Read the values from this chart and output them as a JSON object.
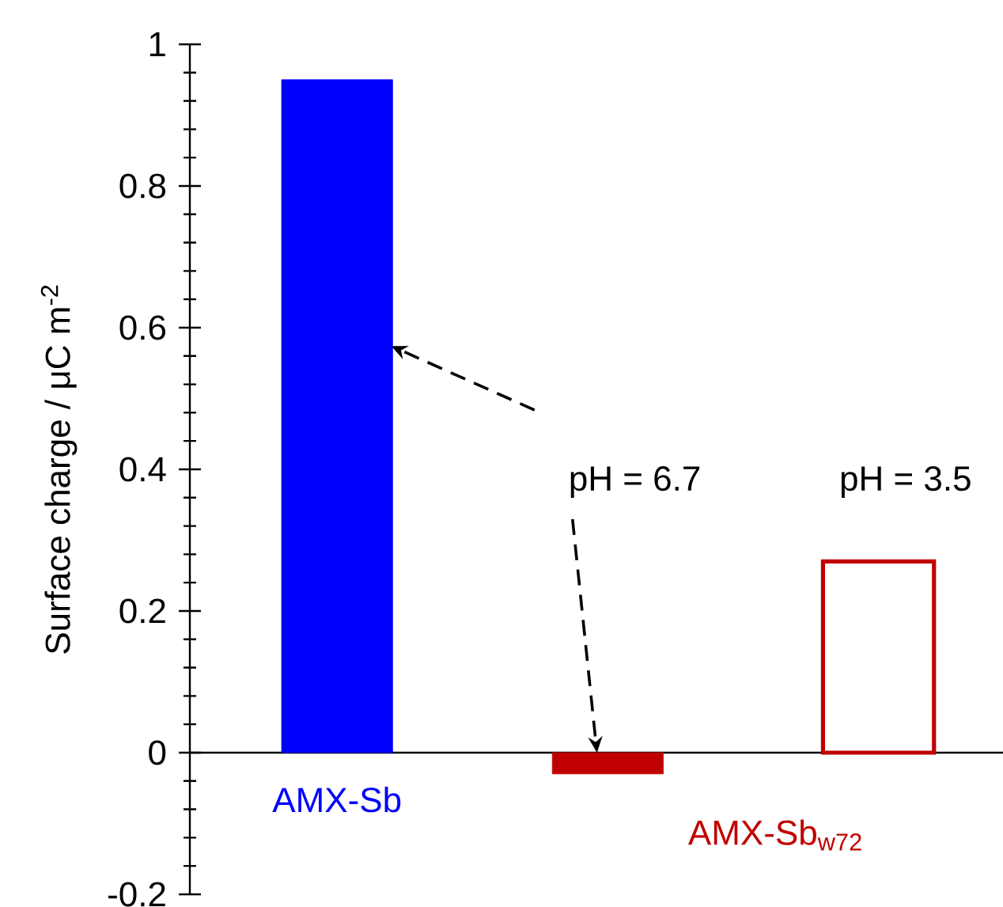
{
  "chart_data": {
    "type": "bar",
    "ylabel": "Surface charge / μC m$^{-2}$",
    "categories": [
      "AMX-Sb",
      null,
      null
    ],
    "series": [
      {
        "colors": [
          "#0000ff",
          "#c00000",
          null
        ],
        "values": [
          0.95,
          -0.03,
          null
        ]
      },
      {
        "colors": [
          null,
          null,
          "#c00000"
        ],
        "values": [
          null,
          null,
          0.27
        ]
      }
    ],
    "ylim": [
      -0.2,
      1
    ],
    "yticks": [
      -0.2,
      0,
      0.2,
      0.4,
      0.6,
      0.8,
      1
    ],
    "annotations": [
      "pH = 6.7",
      "pH = 3.5",
      "AMX-Sb$_{w72}$"
    ]
  }
}
